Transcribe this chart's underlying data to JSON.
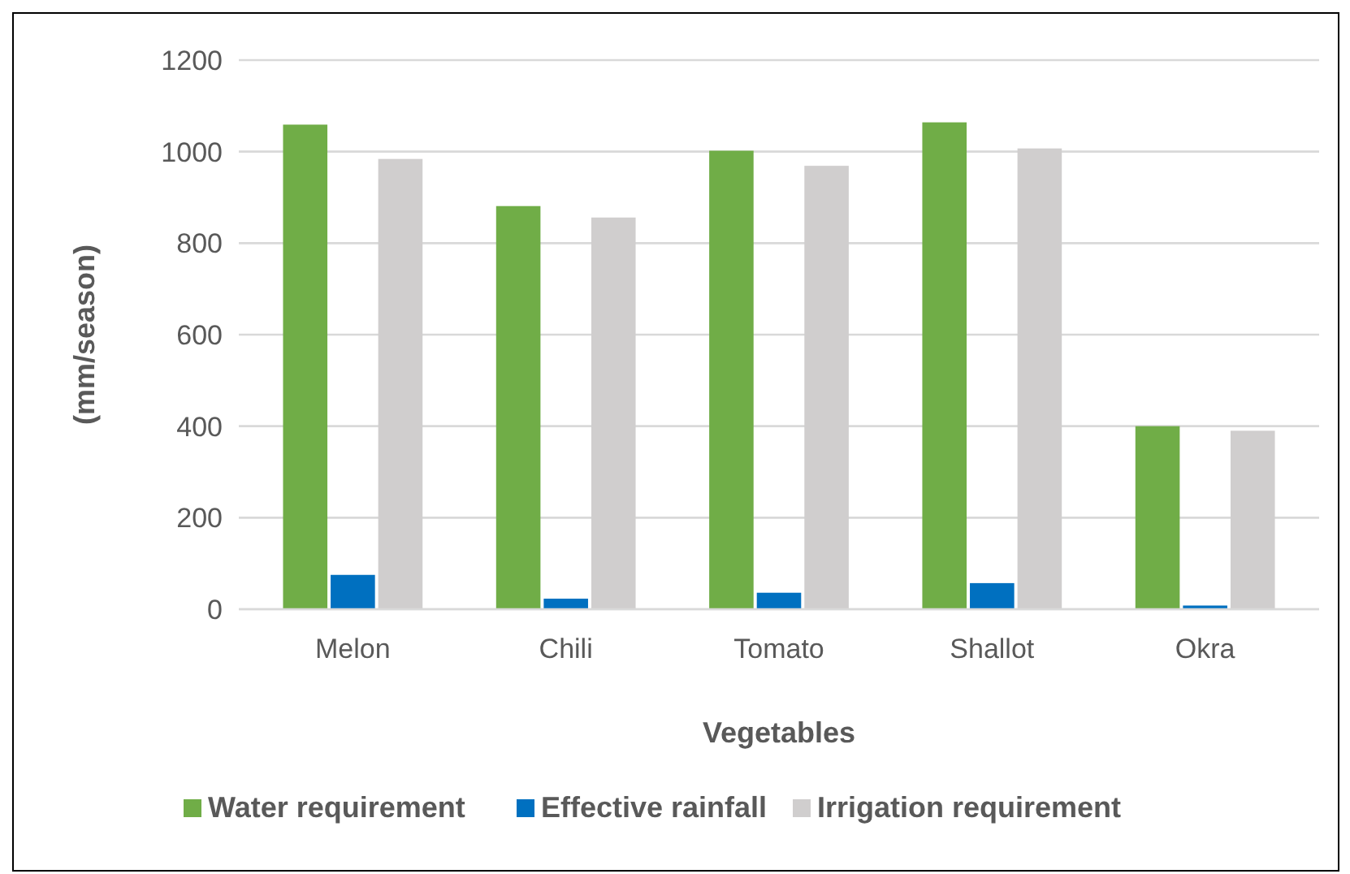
{
  "chart_data": {
    "type": "bar",
    "xlabel": "Vegetables",
    "ylabel": "(mm/season)",
    "categories": [
      "Melon",
      "Chili",
      "Tomato",
      "Shallot",
      "Okra"
    ],
    "series": [
      {
        "name": "Water requirement",
        "color": "#70ad47",
        "values": [
          1059,
          881,
          1002,
          1064,
          400
        ]
      },
      {
        "name": "Effective rainfall",
        "color": "#0070c0",
        "values": [
          75,
          23,
          36,
          57,
          8
        ]
      },
      {
        "name": "Irrigation requirement",
        "color": "#d0cece",
        "values": [
          984,
          856,
          969,
          1007,
          390
        ]
      }
    ],
    "ylim": [
      0,
      1200
    ],
    "yticks": [
      0,
      200,
      400,
      600,
      800,
      1000,
      1200
    ],
    "grid": "y",
    "legend": "bottom"
  }
}
